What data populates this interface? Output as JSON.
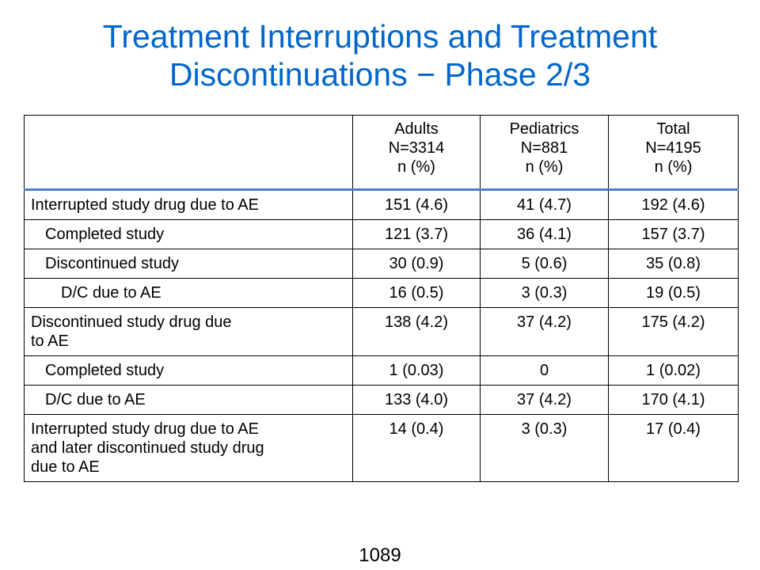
{
  "title": {
    "line1": "Treatment Interruptions and Treatment",
    "line2": "Discontinuations − Phase 2/3"
  },
  "table": {
    "headers": [
      {
        "line1": "Adults",
        "line2": "N=3314",
        "line3": "n (%)"
      },
      {
        "line1": "Pediatrics",
        "line2": "N=881",
        "line3": "n (%)"
      },
      {
        "line1": "Total",
        "line2": "N=4195",
        "line3": "n (%)"
      }
    ],
    "rows": [
      {
        "label": "Interrupted study drug due to AE",
        "indent": 0,
        "adults": "151 (4.6)",
        "pediatrics": "41 (4.7)",
        "total": "192 (4.6)"
      },
      {
        "label": "Completed study",
        "indent": 1,
        "adults": "121 (3.7)",
        "pediatrics": "36 (4.1)",
        "total": "157 (3.7)"
      },
      {
        "label": "Discontinued study",
        "indent": 1,
        "adults": "30 (0.9)",
        "pediatrics": "5 (0.6)",
        "total": "35 (0.8)"
      },
      {
        "label": "D/C due to AE",
        "indent": 2,
        "adults": "16 (0.5)",
        "pediatrics": "3 (0.3)",
        "total": "19 (0.5)"
      },
      {
        "label_lines": [
          "Discontinued study drug due",
          "to AE"
        ],
        "indent": 0,
        "adults": "138 (4.2)",
        "pediatrics": "37 (4.2)",
        "total": "175 (4.2)"
      },
      {
        "label": "Completed study",
        "indent": 1,
        "adults": "1 (0.03)",
        "pediatrics": "0",
        "total": "1 (0.02)"
      },
      {
        "label": "D/C due to AE",
        "indent": 1,
        "adults": "133 (4.0)",
        "pediatrics": "37 (4.2)",
        "total": "170 (4.1)"
      },
      {
        "label_lines": [
          "Interrupted study drug due to AE",
          "and later discontinued study drug",
          "due to AE"
        ],
        "indent": 0,
        "adults": "14 (0.4)",
        "pediatrics": "3 (0.3)",
        "total": "17 (0.4)"
      }
    ]
  },
  "page_number": "1089",
  "colors": {
    "title": "#0066CC",
    "header_rule": "#4A7EC7",
    "text": "#000000"
  }
}
